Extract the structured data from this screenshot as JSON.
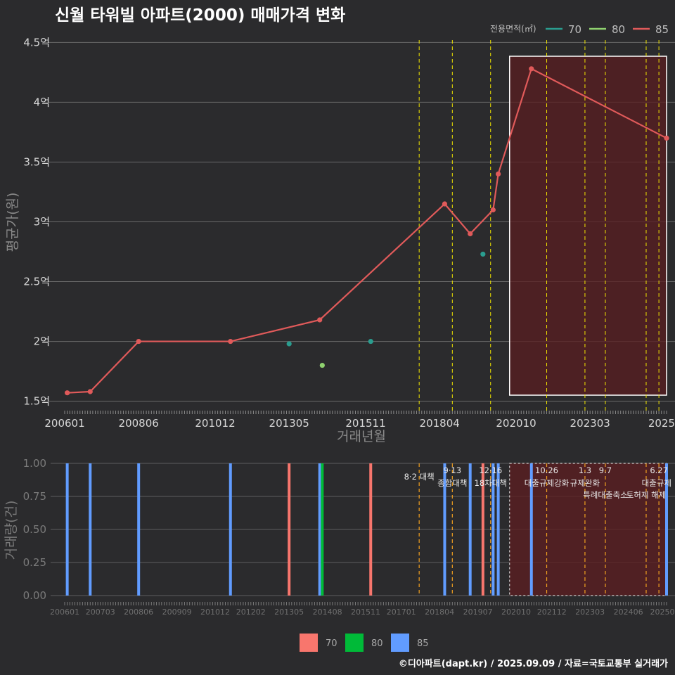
{
  "title": "신월 타워빌 아파트(2000) 매매가격 변화",
  "caption": "©디아파트(dapt.kr) / 2025.09.09 / 자료=국토교통부 실거래가",
  "colors": {
    "s70": "#2a9d8f",
    "s80": "#8fd16f",
    "s85": "#e05a5a",
    "vline": "#f2e600",
    "vline2": "#f0a020",
    "bar70": "#f8766d",
    "bar80": "#00ba38",
    "bar85": "#619cff"
  },
  "chart_data": [
    {
      "type": "line",
      "title": "신월 타워빌 아파트(2000) 매매가격 변화",
      "xlabel": "거래년월",
      "ylabel": "평균가(원)",
      "legend": {
        "title": "전용면적(㎡)",
        "position": "top-right",
        "entries": [
          "70",
          "80",
          "85"
        ]
      },
      "x_ticks": [
        "200601",
        "200806",
        "201012",
        "201305",
        "201511",
        "201804",
        "202010",
        "202303",
        "2025"
      ],
      "y_ticks": [
        "1.5억",
        "2억",
        "2.5억",
        "3억",
        "3.5억",
        "4억",
        "4.5억"
      ],
      "ylim": [
        1.48,
        4.52
      ],
      "series": [
        {
          "name": "70",
          "points": [
            [
              "2013-05",
              1.98
            ],
            [
              "2016-01",
              2.0
            ],
            [
              "2019-09",
              2.73
            ]
          ]
        },
        {
          "name": "80",
          "points": [
            [
              "2014-06",
              1.8
            ]
          ]
        },
        {
          "name": "85",
          "points": [
            [
              "2006-02",
              1.57
            ],
            [
              "2006-11",
              1.58
            ],
            [
              "2008-06",
              2.0
            ],
            [
              "2011-06",
              2.0
            ],
            [
              "2014-05",
              2.18
            ],
            [
              "2018-06",
              3.15
            ],
            [
              "2019-04",
              2.9
            ],
            [
              "2020-01",
              3.1
            ],
            [
              "2020-03",
              3.4
            ],
            [
              "2021-04",
              4.28
            ],
            [
              "2025-09",
              3.7
            ]
          ]
        }
      ],
      "policy_dates": [
        "2017-08",
        "2018-09",
        "2019-12",
        "2021-10",
        "2023-01",
        "2023-09",
        "2025-01",
        "2025-06"
      ],
      "highlight": {
        "from": "2020-08",
        "to": "2025-09"
      }
    },
    {
      "type": "bar",
      "ylabel": "거래량(건)",
      "legend": {
        "position": "bottom",
        "entries": [
          "70",
          "80",
          "85"
        ]
      },
      "x_ticks": [
        "200601",
        "200703",
        "200806",
        "200909",
        "201012",
        "201202",
        "201305",
        "201408",
        "201511",
        "201701",
        "201804",
        "201907",
        "202010",
        "202112",
        "202303",
        "202406",
        "20250"
      ],
      "y_ticks": [
        "0.00",
        "0.25",
        "0.50",
        "0.75",
        "1.00"
      ],
      "ylim": [
        0,
        1
      ],
      "bars": [
        {
          "date": "2006-02",
          "series": "85",
          "value": 1
        },
        {
          "date": "2006-11",
          "series": "85",
          "value": 1
        },
        {
          "date": "2008-06",
          "series": "85",
          "value": 1
        },
        {
          "date": "2011-06",
          "series": "85",
          "value": 1
        },
        {
          "date": "2013-05",
          "series": "70",
          "value": 1
        },
        {
          "date": "2014-05",
          "series": "85",
          "value": 1
        },
        {
          "date": "2014-06",
          "series": "80",
          "value": 1
        },
        {
          "date": "2016-01",
          "series": "70",
          "value": 1
        },
        {
          "date": "2018-06",
          "series": "85",
          "value": 1
        },
        {
          "date": "2019-04",
          "series": "85",
          "value": 1
        },
        {
          "date": "2019-09",
          "series": "70",
          "value": 1
        },
        {
          "date": "2020-01",
          "series": "85",
          "value": 1
        },
        {
          "date": "2020-03",
          "series": "85",
          "value": 1
        },
        {
          "date": "2021-04",
          "series": "85",
          "value": 1
        },
        {
          "date": "2025-09",
          "series": "85",
          "value": 1
        }
      ],
      "policies": [
        {
          "date": "2017-08",
          "date_label": "",
          "label": "8·2 대책"
        },
        {
          "date": "2018-09",
          "date_label": "9·13",
          "label": "종합대책"
        },
        {
          "date": "2019-12",
          "date_label": "12·16",
          "label": "18차대책"
        },
        {
          "date": "2021-10",
          "date_label": "10.26",
          "label": "대출규제강화"
        },
        {
          "date": "2023-01",
          "date_label": "1.3",
          "label": "규제완화"
        },
        {
          "date": "2023-09",
          "date_label": "9.7",
          "label": "특례대출축소"
        },
        {
          "date": "2025-01",
          "date_label": "",
          "label": "토허제 해제"
        },
        {
          "date": "2025-06",
          "date_label": "6.27",
          "label": "대출규제"
        }
      ],
      "highlight": {
        "from": "2020-08",
        "to": "2025-09"
      }
    }
  ]
}
